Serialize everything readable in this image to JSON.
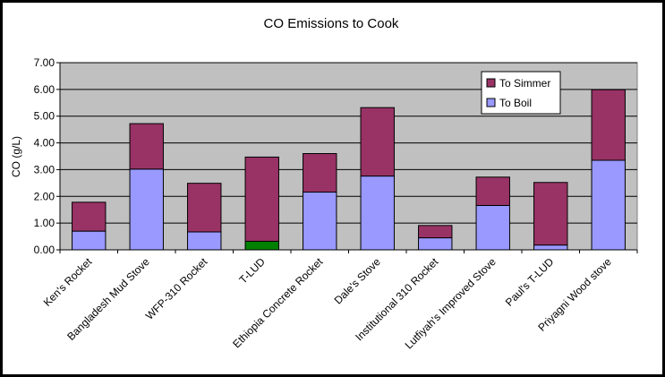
{
  "chart_data": {
    "type": "bar",
    "stacked": true,
    "title": "CO Emissions to Cook",
    "xlabel": "",
    "ylabel": "CO (g/L)",
    "ylim": [
      0,
      7
    ],
    "yticks": [
      "0.00",
      "1.00",
      "2.00",
      "3.00",
      "4.00",
      "5.00",
      "6.00",
      "7.00"
    ],
    "grid": true,
    "legend_position": "top-right",
    "categories": [
      "Ken's Rocket",
      "Bangladesh Mud Stove",
      "WFP-310 Rocket",
      "T-LUD",
      "Ethiopia Concrete Rocket",
      "Dale's Stove",
      "Institutional 310 Rocket",
      "Lutfiyah's Improved Stove",
      "Paul's T-LUD",
      "Priyagni Wood stove"
    ],
    "series": [
      {
        "name": "To Boil",
        "color": "#9999ff",
        "values": [
          0.7,
          3.02,
          0.67,
          0.32,
          2.16,
          2.76,
          0.45,
          1.66,
          0.18,
          3.35
        ],
        "point_colors": [
          null,
          null,
          null,
          "#008000",
          null,
          null,
          null,
          null,
          null,
          null
        ]
      },
      {
        "name": "To Simmer",
        "color": "#993366",
        "values": [
          1.08,
          1.7,
          1.82,
          3.15,
          1.44,
          2.56,
          0.46,
          1.06,
          2.34,
          2.64
        ]
      }
    ],
    "colors": {
      "plot_background": "#c0c0c0",
      "gridline": "#000000",
      "bar_border": "#000000"
    }
  }
}
